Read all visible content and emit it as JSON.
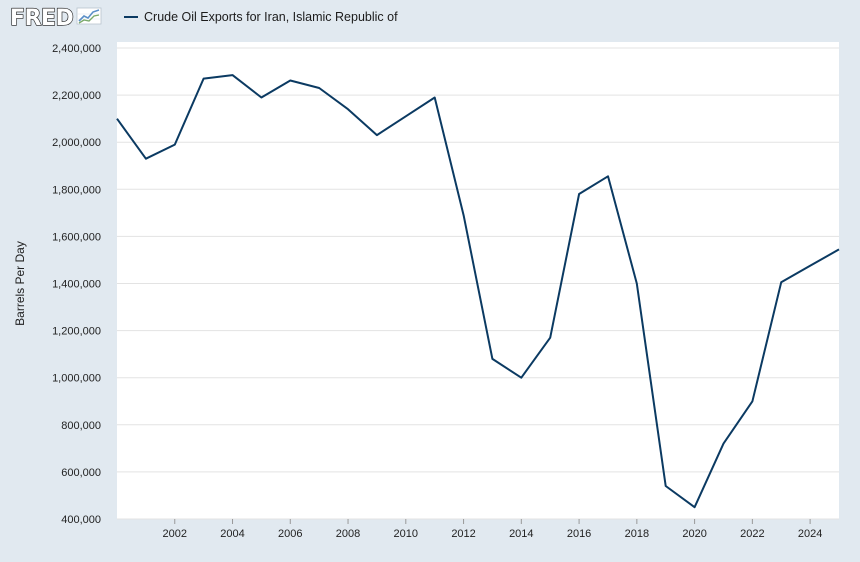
{
  "header": {
    "logo_text": "FRED",
    "legend_label": "Crude Oil Exports for Iran, Islamic Republic of"
  },
  "colors": {
    "page_background": "#e1e9f0",
    "plot_background": "#ffffff",
    "series_line": "#0b3a62",
    "grid": "#e3e3e3"
  },
  "chart_data": {
    "type": "line",
    "ylabel": "Barrels Per Day",
    "xlabel": "",
    "x_ticks": [
      "2002",
      "2004",
      "2006",
      "2008",
      "2010",
      "2012",
      "2014",
      "2016",
      "2018",
      "2020",
      "2022",
      "2024"
    ],
    "y_ticks": [
      "400,000",
      "600,000",
      "800,000",
      "1,000,000",
      "1,200,000",
      "1,400,000",
      "1,600,000",
      "1,800,000",
      "2,000,000",
      "2,200,000",
      "2,400,000"
    ],
    "xlim": [
      2000,
      2025
    ],
    "ylim": [
      400000,
      2400000
    ],
    "grid": true,
    "series": [
      {
        "name": "Crude Oil Exports for Iran, Islamic Republic of",
        "x": [
          2000,
          2001,
          2002,
          2003,
          2004,
          2005,
          2006,
          2007,
          2008,
          2009,
          2010,
          2011,
          2012,
          2013,
          2014,
          2015,
          2016,
          2017,
          2018,
          2019,
          2020,
          2021,
          2022,
          2023,
          2024,
          2025
        ],
        "y": [
          2100000,
          1930000,
          1990000,
          2270000,
          2285000,
          2190000,
          2262000,
          2230000,
          2140000,
          2030000,
          2110000,
          2190000,
          1690000,
          1080000,
          1000000,
          1170000,
          1780000,
          1855000,
          1400000,
          540000,
          450000,
          720000,
          900000,
          1405000,
          1475000,
          1545000
        ]
      }
    ]
  }
}
